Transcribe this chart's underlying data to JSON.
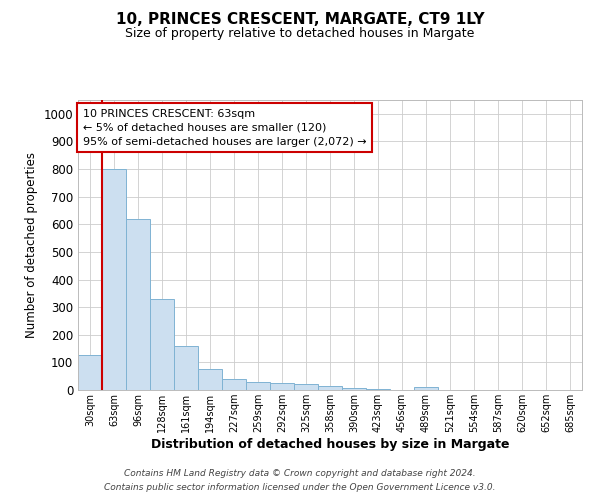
{
  "title": "10, PRINCES CRESCENT, MARGATE, CT9 1LY",
  "subtitle": "Size of property relative to detached houses in Margate",
  "xlabel": "Distribution of detached houses by size in Margate",
  "ylabel": "Number of detached properties",
  "categories": [
    "30sqm",
    "63sqm",
    "96sqm",
    "128sqm",
    "161sqm",
    "194sqm",
    "227sqm",
    "259sqm",
    "292sqm",
    "325sqm",
    "358sqm",
    "390sqm",
    "423sqm",
    "456sqm",
    "489sqm",
    "521sqm",
    "554sqm",
    "587sqm",
    "620sqm",
    "652sqm",
    "685sqm"
  ],
  "values": [
    125,
    800,
    620,
    330,
    160,
    77,
    40,
    30,
    25,
    20,
    13,
    8,
    5,
    0,
    10,
    0,
    0,
    0,
    0,
    0,
    0
  ],
  "bar_color": "#ccdff0",
  "bar_edgecolor": "#7fb3d3",
  "vline_x_idx": 1,
  "vline_color": "#cc0000",
  "annotation_line1": "10 PRINCES CRESCENT: 63sqm",
  "annotation_line2": "← 5% of detached houses are smaller (120)",
  "annotation_line3": "95% of semi-detached houses are larger (2,072) →",
  "annotation_box_color": "#cc0000",
  "ylim": [
    0,
    1050
  ],
  "yticks": [
    0,
    100,
    200,
    300,
    400,
    500,
    600,
    700,
    800,
    900,
    1000
  ],
  "footer_line1": "Contains HM Land Registry data © Crown copyright and database right 2024.",
  "footer_line2": "Contains public sector information licensed under the Open Government Licence v3.0.",
  "bg_color": "#ffffff",
  "grid_color": "#cccccc"
}
